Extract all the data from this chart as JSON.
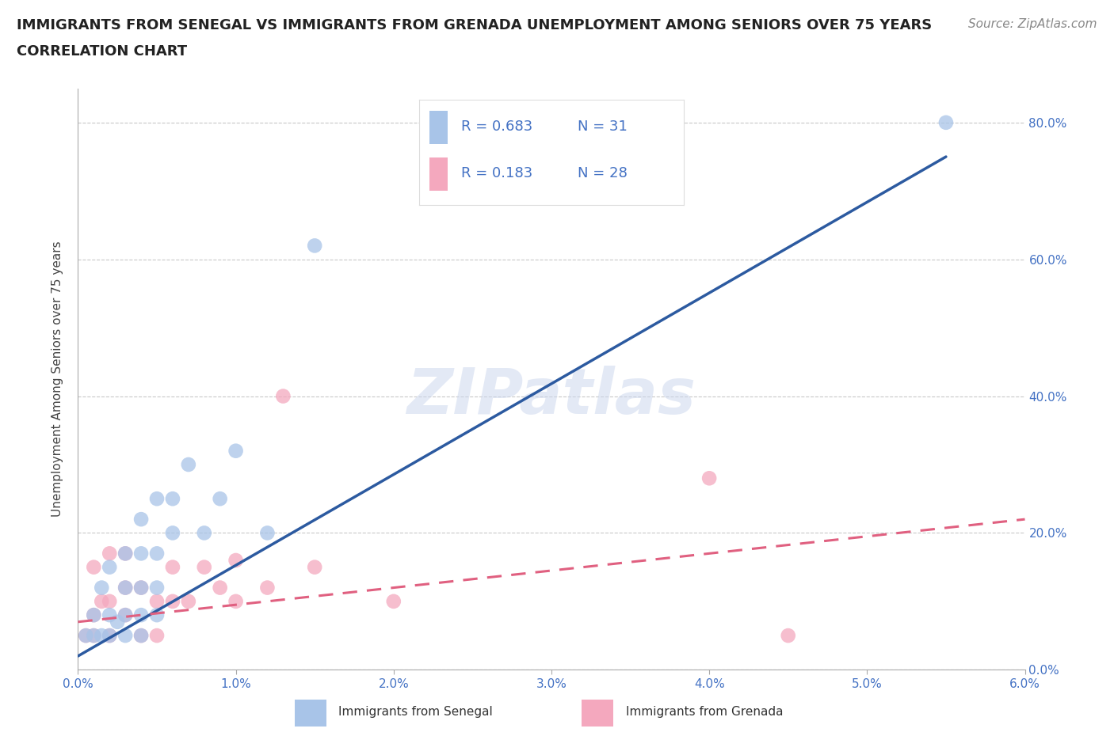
{
  "title_line1": "IMMIGRANTS FROM SENEGAL VS IMMIGRANTS FROM GRENADA UNEMPLOYMENT AMONG SENIORS OVER 75 YEARS",
  "title_line2": "CORRELATION CHART",
  "source": "Source: ZipAtlas.com",
  "ylabel": "Unemployment Among Seniors over 75 years",
  "xlim": [
    0.0,
    0.06
  ],
  "ylim": [
    0.0,
    0.85
  ],
  "x_ticks": [
    0.0,
    0.01,
    0.02,
    0.03,
    0.04,
    0.05,
    0.06
  ],
  "x_tick_labels": [
    "0.0%",
    "1.0%",
    "2.0%",
    "3.0%",
    "4.0%",
    "5.0%",
    "6.0%"
  ],
  "y_ticks": [
    0.0,
    0.2,
    0.4,
    0.6,
    0.8
  ],
  "y_tick_labels": [
    "0.0%",
    "20.0%",
    "40.0%",
    "60.0%",
    "80.0%"
  ],
  "grid_color": "#c8c8c8",
  "background_color": "#ffffff",
  "watermark": "ZIPatlas",
  "senegal_R": 0.683,
  "senegal_N": 31,
  "grenada_R": 0.183,
  "grenada_N": 28,
  "senegal_color": "#a8c4e8",
  "grenada_color": "#f4a8be",
  "senegal_line_color": "#2c5aa0",
  "grenada_line_color": "#e06080",
  "senegal_x": [
    0.0005,
    0.001,
    0.001,
    0.0015,
    0.0015,
    0.002,
    0.002,
    0.002,
    0.0025,
    0.003,
    0.003,
    0.003,
    0.003,
    0.004,
    0.004,
    0.004,
    0.004,
    0.004,
    0.005,
    0.005,
    0.005,
    0.005,
    0.006,
    0.006,
    0.007,
    0.008,
    0.009,
    0.01,
    0.012,
    0.015,
    0.055
  ],
  "senegal_y": [
    0.05,
    0.05,
    0.08,
    0.05,
    0.12,
    0.05,
    0.08,
    0.15,
    0.07,
    0.05,
    0.08,
    0.12,
    0.17,
    0.05,
    0.08,
    0.12,
    0.17,
    0.22,
    0.08,
    0.12,
    0.17,
    0.25,
    0.2,
    0.25,
    0.3,
    0.2,
    0.25,
    0.32,
    0.2,
    0.62,
    0.8
  ],
  "grenada_x": [
    0.0005,
    0.001,
    0.001,
    0.001,
    0.0015,
    0.002,
    0.002,
    0.002,
    0.003,
    0.003,
    0.003,
    0.004,
    0.004,
    0.005,
    0.005,
    0.006,
    0.006,
    0.007,
    0.008,
    0.009,
    0.01,
    0.01,
    0.012,
    0.013,
    0.015,
    0.02,
    0.04,
    0.045
  ],
  "grenada_y": [
    0.05,
    0.05,
    0.08,
    0.15,
    0.1,
    0.05,
    0.1,
    0.17,
    0.08,
    0.12,
    0.17,
    0.05,
    0.12,
    0.05,
    0.1,
    0.1,
    0.15,
    0.1,
    0.15,
    0.12,
    0.1,
    0.16,
    0.12,
    0.4,
    0.15,
    0.1,
    0.28,
    0.05
  ],
  "senegal_line_x": [
    0.0,
    0.055
  ],
  "senegal_line_y": [
    0.02,
    0.75
  ],
  "grenada_line_x": [
    0.0,
    0.06
  ],
  "grenada_line_y": [
    0.07,
    0.22
  ],
  "title_fontsize": 13,
  "axis_label_fontsize": 11,
  "tick_fontsize": 11,
  "legend_fontsize": 13,
  "source_fontsize": 11
}
